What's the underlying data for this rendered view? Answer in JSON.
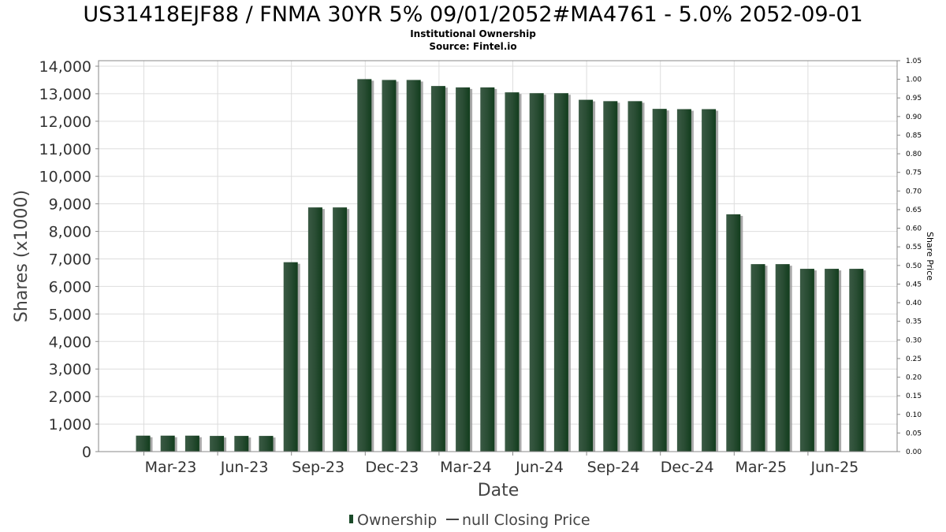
{
  "chart_data": {
    "type": "bar",
    "title": "US31418EJF88 / FNMA 30YR 5% 09/01/2052#MA4761 - 5.0% 2052-09-01",
    "subtitle": "Institutional Ownership",
    "source": "Source: Fintel.io",
    "xlabel": "Date",
    "ylabel": "Shares (x1000)",
    "y2label": "Share Price",
    "ylim": [
      0,
      14200
    ],
    "y2lim": [
      0,
      1.05
    ],
    "yticks": [
      "0",
      "1,000",
      "2,000",
      "3,000",
      "4,000",
      "5,000",
      "6,000",
      "7,000",
      "8,000",
      "9,000",
      "10,000",
      "11,000",
      "12,000",
      "13,000",
      "14,000"
    ],
    "y2ticks": [
      "0.00",
      "0.05",
      "0.10",
      "0.15",
      "0.20",
      "0.25",
      "0.30",
      "0.35",
      "0.40",
      "0.45",
      "0.50",
      "0.55",
      "0.60",
      "0.65",
      "0.70",
      "0.75",
      "0.80",
      "0.85",
      "0.90",
      "0.95",
      "1.00",
      "1.05"
    ],
    "xticks": [
      "Mar-23",
      "Jun-23",
      "Sep-23",
      "Dec-23",
      "Mar-24",
      "Jun-24",
      "Sep-24",
      "Dec-24",
      "Mar-25",
      "Jun-25"
    ],
    "grid": true,
    "legend_position": "bottom",
    "series": [
      {
        "name": "Ownership",
        "color": "#1a4a28",
        "values": [
          580,
          580,
          580,
          570,
          570,
          570,
          6880,
          8870,
          8870,
          13530,
          13500,
          13500,
          13280,
          13230,
          13230,
          13050,
          13020,
          13020,
          12780,
          12730,
          12730,
          12450,
          12440,
          12440,
          8620,
          6810,
          6810,
          6640,
          6640,
          6640
        ]
      },
      {
        "name": "null Closing Price",
        "color": "#333333",
        "values": []
      }
    ]
  }
}
